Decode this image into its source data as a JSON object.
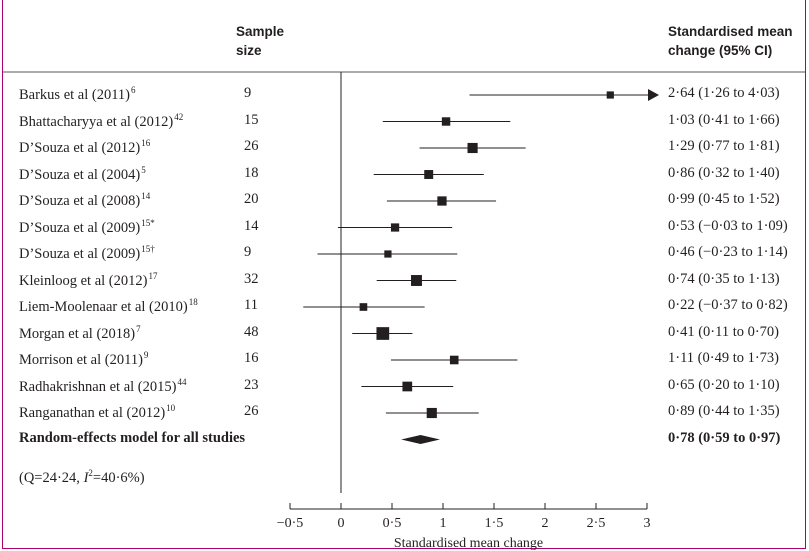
{
  "headers": {
    "sample_line1": "Sample",
    "sample_line2": "size",
    "effect_line1": "Standardised mean",
    "effect_line2": "change (95% CI)"
  },
  "chart_data": {
    "type": "forest",
    "xlabel": "Standardised mean change",
    "xlim": [
      -0.5,
      3
    ],
    "xticks": [
      "−0·5",
      "0",
      "0·5",
      "1",
      "1·5",
      "2",
      "2·5",
      "3"
    ],
    "xtick_values": [
      -0.5,
      0,
      0.5,
      1,
      1.5,
      2,
      2.5,
      3
    ],
    "studies": [
      {
        "name": "Barkus et al (2011)",
        "ref": "6",
        "n": "9",
        "est": 2.64,
        "lo": 1.26,
        "hi": 4.03,
        "ci_text": "2·64 (1·26 to 4·03)",
        "arrow": true
      },
      {
        "name": "Bhattacharyya et al (2012)",
        "ref": "42",
        "n": "15",
        "est": 1.03,
        "lo": 0.41,
        "hi": 1.66,
        "ci_text": "1·03 (0·41 to 1·66)"
      },
      {
        "name": "D’Souza et al (2012)",
        "ref": "16",
        "n": "26",
        "est": 1.29,
        "lo": 0.77,
        "hi": 1.81,
        "ci_text": "1·29 (0·77 to 1·81)"
      },
      {
        "name": "D’Souza et al (2004)",
        "ref": "5",
        "n": "18",
        "est": 0.86,
        "lo": 0.32,
        "hi": 1.4,
        "ci_text": "0·86 (0·32 to 1·40)"
      },
      {
        "name": "D’Souza et al (2008)",
        "ref": "14",
        "n": "20",
        "est": 0.99,
        "lo": 0.45,
        "hi": 1.52,
        "ci_text": "0·99 (0·45 to 1·52)"
      },
      {
        "name": "D’Souza et al (2009)",
        "ref": "15*",
        "n": "14",
        "est": 0.53,
        "lo": -0.03,
        "hi": 1.09,
        "ci_text": "0·53 (−0·03 to 1·09)"
      },
      {
        "name": "D’Souza et al (2009)",
        "ref": "15†",
        "n": "9",
        "est": 0.46,
        "lo": -0.23,
        "hi": 1.14,
        "ci_text": "0·46 (−0·23 to 1·14)"
      },
      {
        "name": "Kleinloog et al (2012)",
        "ref": "17",
        "n": "32",
        "est": 0.74,
        "lo": 0.35,
        "hi": 1.13,
        "ci_text": "0·74 (0·35 to 1·13)"
      },
      {
        "name": "Liem-Moolenaar et al (2010)",
        "ref": "18",
        "n": "11",
        "est": 0.22,
        "lo": -0.37,
        "hi": 0.82,
        "ci_text": "0·22 (−0·37 to 0·82)"
      },
      {
        "name": "Morgan et al (2018)",
        "ref": "7",
        "n": "48",
        "est": 0.41,
        "lo": 0.11,
        "hi": 0.7,
        "ci_text": "0·41 (0·11 to 0·70)"
      },
      {
        "name": "Morrison et al (2011)",
        "ref": "9",
        "n": "16",
        "est": 1.11,
        "lo": 0.49,
        "hi": 1.73,
        "ci_text": "1·11 (0·49 to 1·73)"
      },
      {
        "name": "Radhakrishnan et al (2015)",
        "ref": "44",
        "n": "23",
        "est": 0.65,
        "lo": 0.2,
        "hi": 1.1,
        "ci_text": "0·65 (0·20 to 1·10)"
      },
      {
        "name": "Ranganathan et al (2012)",
        "ref": "10",
        "n": "26",
        "est": 0.89,
        "lo": 0.44,
        "hi": 1.35,
        "ci_text": "0·89 (0·44 to 1·35)"
      }
    ],
    "summary": {
      "name": "Random-effects model for all studies",
      "est": 0.78,
      "lo": 0.59,
      "hi": 0.97,
      "ci_text": "0·78 (0·59 to 0·97)"
    },
    "heterogeneity": {
      "prefix": "(Q=24·24, ",
      "i_label": "I",
      "i_sup": "2",
      "suffix": "=40·6%)"
    }
  },
  "colors": {
    "frame": "#b0006a",
    "ink": "#231f20"
  }
}
